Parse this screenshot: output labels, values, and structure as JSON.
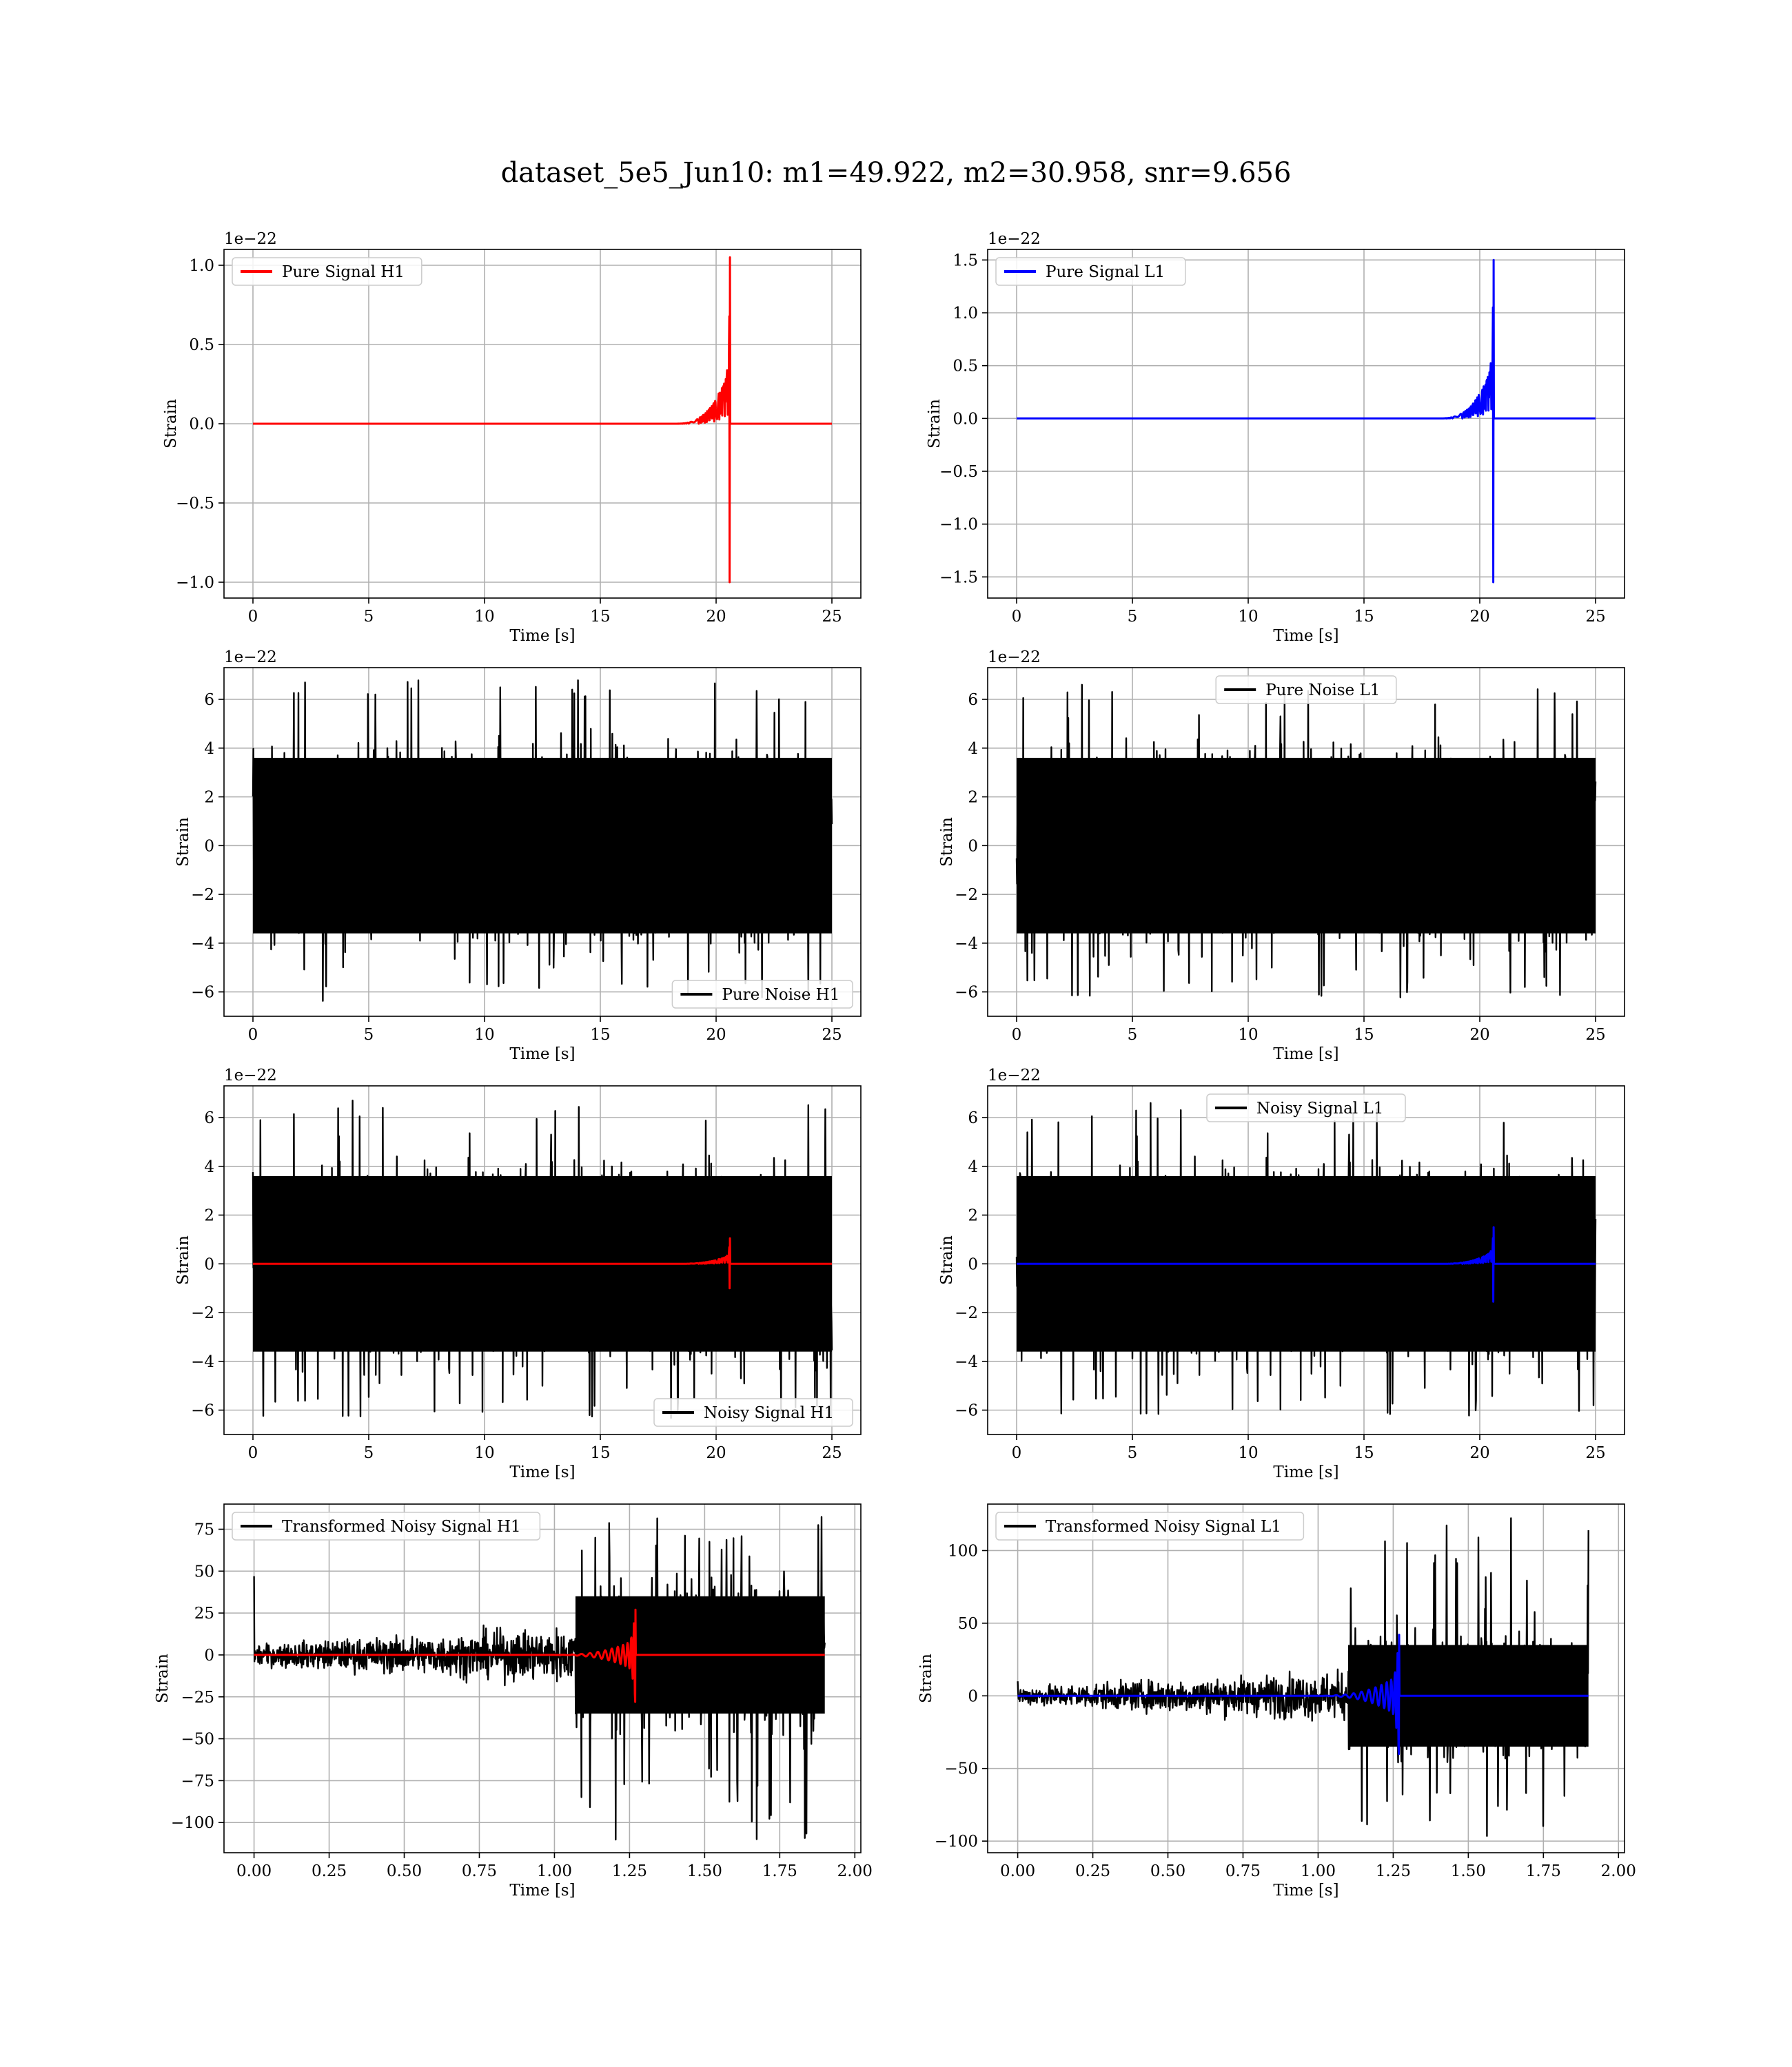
{
  "figure": {
    "suptitle": "dataset_5e5_Jun10: m1=49.922, m2=30.958, snr=9.656"
  },
  "colors": {
    "h1": "#ff0000",
    "l1": "#0000ff",
    "noise": "#000000",
    "grid": "#b0b0b0"
  },
  "chart_data": [
    {
      "type": "line",
      "panel": "pure-signal-h1",
      "xlabel": "Time [s]",
      "ylabel": "Strain",
      "offset_text": "1e−22",
      "xlim": [
        -1.25,
        26.25
      ],
      "ylim": [
        -1.1,
        1.1
      ],
      "xticks": [
        0,
        5,
        10,
        15,
        20,
        25
      ],
      "xtick_labels": [
        "0",
        "5",
        "10",
        "15",
        "20",
        "25"
      ],
      "yticks": [
        -1.0,
        -0.5,
        0.0,
        0.5,
        1.0
      ],
      "ytick_labels": [
        "−1.0",
        "−0.5",
        "0.0",
        "0.5",
        "1.0"
      ],
      "legend_loc": "upper left",
      "grid": true,
      "series": [
        {
          "name": "Pure Signal H1",
          "color": "#ff0000",
          "kind": "chirp",
          "x_start": 0,
          "x_end": 25,
          "merger_time": 20.6,
          "peak_pos": 1.05,
          "peak_neg": -1.0,
          "x_unit_scale": "1e-22"
        }
      ]
    },
    {
      "type": "line",
      "panel": "pure-signal-l1",
      "xlabel": "Time [s]",
      "ylabel": "Strain",
      "offset_text": "1e−22",
      "xlim": [
        -1.25,
        26.25
      ],
      "ylim": [
        -1.7,
        1.6
      ],
      "xticks": [
        0,
        5,
        10,
        15,
        20,
        25
      ],
      "xtick_labels": [
        "0",
        "5",
        "10",
        "15",
        "20",
        "25"
      ],
      "yticks": [
        -1.5,
        -1.0,
        -0.5,
        0.0,
        0.5,
        1.0,
        1.5
      ],
      "ytick_labels": [
        "−1.5",
        "−1.0",
        "−0.5",
        "0.0",
        "0.5",
        "1.0",
        "1.5"
      ],
      "legend_loc": "upper left",
      "grid": true,
      "series": [
        {
          "name": "Pure Signal L1",
          "color": "#0000ff",
          "kind": "chirp",
          "x_start": 0,
          "x_end": 25,
          "merger_time": 20.6,
          "peak_pos": 1.5,
          "peak_neg": -1.55
        }
      ]
    },
    {
      "type": "line",
      "panel": "pure-noise-h1",
      "xlabel": "Time [s]",
      "ylabel": "Strain",
      "offset_text": "1e−22",
      "xlim": [
        -1.25,
        26.25
      ],
      "ylim": [
        -7.0,
        7.3
      ],
      "xticks": [
        0,
        5,
        10,
        15,
        20,
        25
      ],
      "xtick_labels": [
        "0",
        "5",
        "10",
        "15",
        "20",
        "25"
      ],
      "yticks": [
        -6,
        -4,
        -2,
        0,
        2,
        4,
        6
      ],
      "ytick_labels": [
        "−6",
        "−4",
        "−2",
        "0",
        "2",
        "4",
        "6"
      ],
      "legend_loc": "lower right",
      "grid": true,
      "series": [
        {
          "name": "Pure Noise H1",
          "color": "#000000",
          "kind": "noise",
          "x_start": 0,
          "x_end": 25,
          "max": 6.8,
          "min": -6.4,
          "band": 3.6
        }
      ]
    },
    {
      "type": "line",
      "panel": "pure-noise-l1",
      "xlabel": "Time [s]",
      "ylabel": "Strain",
      "offset_text": "1e−22",
      "xlim": [
        -1.25,
        26.25
      ],
      "ylim": [
        -7.0,
        7.3
      ],
      "xticks": [
        0,
        5,
        10,
        15,
        20,
        25
      ],
      "xtick_labels": [
        "0",
        "5",
        "10",
        "15",
        "20",
        "25"
      ],
      "yticks": [
        -6,
        -4,
        -2,
        0,
        2,
        4,
        6
      ],
      "ytick_labels": [
        "−6",
        "−4",
        "−2",
        "0",
        "2",
        "4",
        "6"
      ],
      "legend_loc": "upper center",
      "grid": true,
      "series": [
        {
          "name": "Pure Noise L1",
          "color": "#000000",
          "kind": "noise",
          "x_start": 0,
          "x_end": 25,
          "max": 6.7,
          "min": -6.3,
          "band": 3.6
        }
      ]
    },
    {
      "type": "line",
      "panel": "noisy-signal-h1",
      "xlabel": "Time [s]",
      "ylabel": "Strain",
      "offset_text": "1e−22",
      "xlim": [
        -1.25,
        26.25
      ],
      "ylim": [
        -7.0,
        7.3
      ],
      "xticks": [
        0,
        5,
        10,
        15,
        20,
        25
      ],
      "xtick_labels": [
        "0",
        "5",
        "10",
        "15",
        "20",
        "25"
      ],
      "yticks": [
        -6,
        -4,
        -2,
        0,
        2,
        4,
        6
      ],
      "ytick_labels": [
        "−6",
        "−4",
        "−2",
        "0",
        "2",
        "4",
        "6"
      ],
      "legend_loc": "lower right",
      "grid": true,
      "series": [
        {
          "name": "Noisy Signal H1",
          "color": "#000000",
          "kind": "noise",
          "x_start": 0,
          "x_end": 25,
          "max": 6.8,
          "min": -6.4,
          "band": 3.6
        },
        {
          "color": "#ff0000",
          "kind": "chirp",
          "x_start": 0,
          "x_end": 25,
          "merger_time": 20.6,
          "peak_pos": 1.05,
          "peak_neg": -1.0
        }
      ]
    },
    {
      "type": "line",
      "panel": "noisy-signal-l1",
      "xlabel": "Time [s]",
      "ylabel": "Strain",
      "offset_text": "1e−22",
      "xlim": [
        -1.25,
        26.25
      ],
      "ylim": [
        -7.0,
        7.3
      ],
      "xticks": [
        0,
        5,
        10,
        15,
        20,
        25
      ],
      "xtick_labels": [
        "0",
        "5",
        "10",
        "15",
        "20",
        "25"
      ],
      "yticks": [
        -6,
        -4,
        -2,
        0,
        2,
        4,
        6
      ],
      "ytick_labels": [
        "−6",
        "−4",
        "−2",
        "0",
        "2",
        "4",
        "6"
      ],
      "legend_loc": "upper center",
      "grid": true,
      "series": [
        {
          "name": "Noisy Signal L1",
          "color": "#000000",
          "kind": "noise",
          "x_start": 0,
          "x_end": 25,
          "max": 6.7,
          "min": -6.3,
          "band": 3.6
        },
        {
          "color": "#0000ff",
          "kind": "chirp",
          "x_start": 0,
          "x_end": 25,
          "merger_time": 20.6,
          "peak_pos": 1.5,
          "peak_neg": -1.55
        }
      ]
    },
    {
      "type": "line",
      "panel": "transformed-h1",
      "xlabel": "Time [s]",
      "ylabel": "Strain",
      "offset_text": "",
      "xlim": [
        -0.1,
        2.02
      ],
      "ylim": [
        -118,
        90
      ],
      "xticks": [
        0,
        0.25,
        0.5,
        0.75,
        1.0,
        1.25,
        1.5,
        1.75,
        2.0
      ],
      "xtick_labels": [
        "0.00",
        "0.25",
        "0.50",
        "0.75",
        "1.00",
        "1.25",
        "1.50",
        "1.75",
        "2.00"
      ],
      "yticks": [
        -100,
        -75,
        -50,
        -25,
        0,
        25,
        50,
        75
      ],
      "ytick_labels": [
        "−100",
        "−75",
        "−50",
        "−25",
        "0",
        "25",
        "50",
        "75"
      ],
      "legend_loc": "upper left",
      "grid": true,
      "series": [
        {
          "name": "Transformed Noisy Signal H1",
          "color": "#000000",
          "kind": "tnoise",
          "x_start": 0,
          "x_end": 1.9,
          "jump_at": 1.07,
          "max": 83,
          "min": -112,
          "spike_at_0": 47
        },
        {
          "color": "#ff0000",
          "kind": "tchirp",
          "x_start": 0,
          "x_end": 1.9,
          "merger_time": 1.27,
          "peak_pos": 27,
          "peak_neg": -28
        }
      ]
    },
    {
      "type": "line",
      "panel": "transformed-l1",
      "xlabel": "Time [s]",
      "ylabel": "Strain",
      "offset_text": "",
      "xlim": [
        -0.1,
        2.02
      ],
      "ylim": [
        -108,
        132
      ],
      "xticks": [
        0,
        0.25,
        0.5,
        0.75,
        1.0,
        1.25,
        1.5,
        1.75,
        2.0
      ],
      "xtick_labels": [
        "0.00",
        "0.25",
        "0.50",
        "0.75",
        "1.00",
        "1.25",
        "1.50",
        "1.75",
        "2.00"
      ],
      "yticks": [
        -100,
        -50,
        0,
        50,
        100
      ],
      "ytick_labels": [
        "−100",
        "−50",
        "0",
        "50",
        "100"
      ],
      "legend_loc": "upper left",
      "grid": true,
      "series": [
        {
          "name": "Transformed Noisy Signal L1",
          "color": "#000000",
          "kind": "tnoise",
          "x_start": 0,
          "x_end": 1.9,
          "jump_at": 1.1,
          "max": 123,
          "min": -100,
          "spike_at_0": 10
        },
        {
          "color": "#0000ff",
          "kind": "tchirp",
          "x_start": 0,
          "x_end": 1.9,
          "merger_time": 1.27,
          "peak_pos": 42,
          "peak_neg": -40
        }
      ]
    }
  ]
}
